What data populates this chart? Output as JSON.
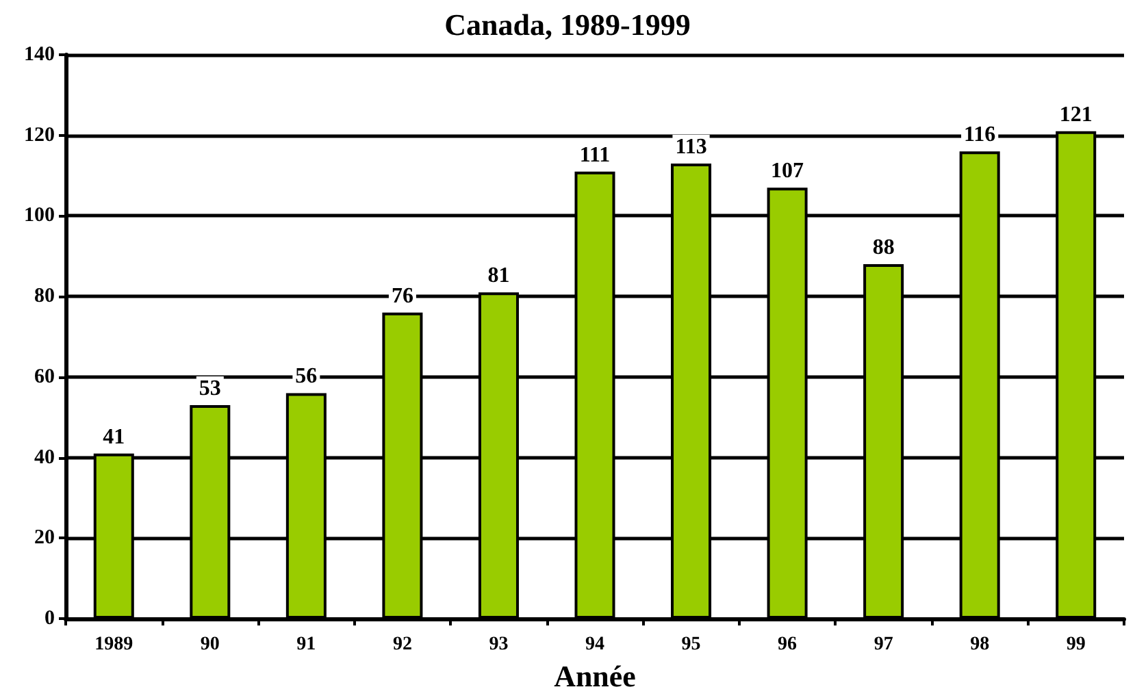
{
  "chart_data": {
    "type": "bar",
    "title": "Canada, 1989-1999",
    "xlabel": "Année",
    "categories": [
      "1989",
      "90",
      "91",
      "92",
      "93",
      "94",
      "95",
      "96",
      "97",
      "98",
      "99"
    ],
    "values": [
      41,
      53,
      56,
      76,
      81,
      111,
      113,
      107,
      88,
      116,
      121
    ],
    "color": "#99cc00",
    "ylim": [
      0,
      140
    ],
    "yticks": [
      0,
      20,
      40,
      60,
      80,
      100,
      120,
      140
    ],
    "grid": "y",
    "data_labels": true
  }
}
